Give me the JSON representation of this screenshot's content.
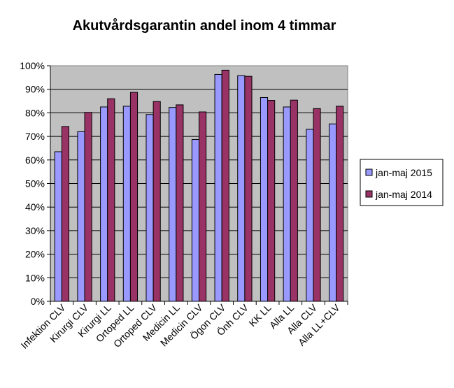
{
  "chart_data": {
    "type": "bar",
    "title": "Akutvårdsgarantin andel inom 4 timmar",
    "xlabel": "",
    "ylabel": "",
    "ylim": [
      0,
      100
    ],
    "yticks": [
      "0%",
      "10%",
      "20%",
      "30%",
      "40%",
      "50%",
      "60%",
      "70%",
      "80%",
      "90%",
      "100%"
    ],
    "categories": [
      "Infektion CLV",
      "Kirurgi CLV",
      "Kirurgi LL",
      "Ortoped LL",
      "Ortoped CLV",
      "Medicin LL",
      "Medicin CLV",
      "Ögon CLV",
      "Önh CLV",
      "KK LL",
      "Alla LL",
      "Alla CLV",
      "Alla LL+CLV"
    ],
    "series": [
      {
        "name": "jan-maj 2015",
        "color": "#9999FF",
        "values": [
          63.5,
          72,
          82.5,
          82.8,
          79.3,
          82.3,
          68.7,
          96.3,
          95.8,
          86.5,
          82.5,
          73,
          75.3
        ]
      },
      {
        "name": "jan-maj 2014",
        "color": "#993366",
        "values": [
          74.2,
          80.2,
          86,
          88.7,
          84.8,
          83.4,
          80.4,
          98.1,
          95.5,
          85.3,
          85.4,
          81.8,
          82.8
        ]
      }
    ],
    "plot_background": "#C0C0C0",
    "grid": true,
    "legend_position": "right"
  }
}
